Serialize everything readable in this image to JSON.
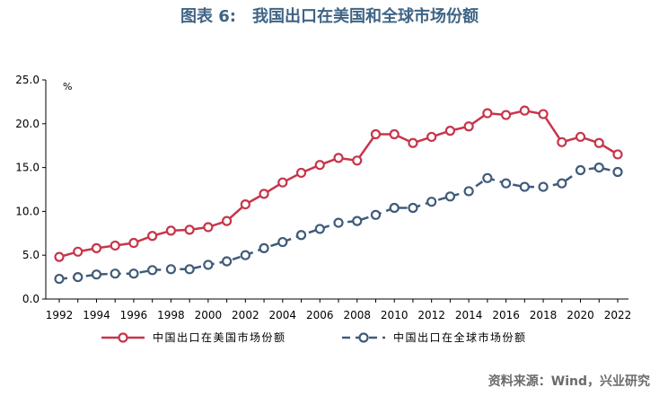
{
  "figure": {
    "label": "图表 6:",
    "title": "我国出口在美国和全球市场份额",
    "source": "资料来源：Wind，兴业研究"
  },
  "colors": {
    "us_series": "#c7354b",
    "global_series": "#3f5b7a",
    "title": "#3f6485"
  },
  "chart_data": {
    "type": "line",
    "x": [
      1992,
      1993,
      1994,
      1995,
      1996,
      1997,
      1998,
      1999,
      2000,
      2001,
      2002,
      2003,
      2004,
      2005,
      2006,
      2007,
      2008,
      2009,
      2010,
      2011,
      2012,
      2013,
      2014,
      2015,
      2016,
      2017,
      2018,
      2019,
      2020,
      2021,
      2022
    ],
    "x_ticks": [
      "1992",
      "1994",
      "1996",
      "1998",
      "2000",
      "2002",
      "2004",
      "2006",
      "2008",
      "2010",
      "2012",
      "2014",
      "2016",
      "2018",
      "2020",
      "2022"
    ],
    "y_ticks": [
      "0.0",
      "5.0",
      "10.0",
      "15.0",
      "20.0",
      "25.0"
    ],
    "ylim": [
      0,
      25
    ],
    "ylabel": "%",
    "grid": false,
    "legend_position": "bottom",
    "series": [
      {
        "name": "中国出口在美国市场份额",
        "style": "solid",
        "values": [
          4.8,
          5.4,
          5.8,
          6.1,
          6.4,
          7.2,
          7.8,
          7.9,
          8.2,
          8.9,
          10.8,
          12.0,
          13.3,
          14.4,
          15.3,
          16.1,
          15.8,
          18.8,
          18.8,
          17.8,
          18.5,
          19.2,
          19.7,
          21.2,
          21.0,
          21.5,
          21.1,
          17.9,
          18.5,
          17.8,
          16.5
        ]
      },
      {
        "name": "中国出口在全球市场份额",
        "style": "dashed",
        "values": [
          2.3,
          2.5,
          2.8,
          2.9,
          2.9,
          3.3,
          3.4,
          3.4,
          3.9,
          4.3,
          5.0,
          5.8,
          6.5,
          7.3,
          8.0,
          8.7,
          8.9,
          9.6,
          10.4,
          10.4,
          11.1,
          11.7,
          12.3,
          13.8,
          13.2,
          12.8,
          12.8,
          13.2,
          14.7,
          15.0,
          14.5
        ]
      }
    ]
  }
}
